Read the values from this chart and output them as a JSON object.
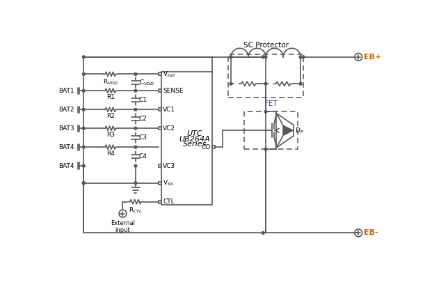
{
  "bg_color": "#ffffff",
  "lc": "#585858",
  "lw": 1.2,
  "text_color": "#000000",
  "orange_color": "#cc6600",
  "blue_color": "#3333cc",
  "sc_protector_label": "SC Protector",
  "fet_label": "FET",
  "eb_plus": "EB+",
  "eb_minus": "EB-"
}
